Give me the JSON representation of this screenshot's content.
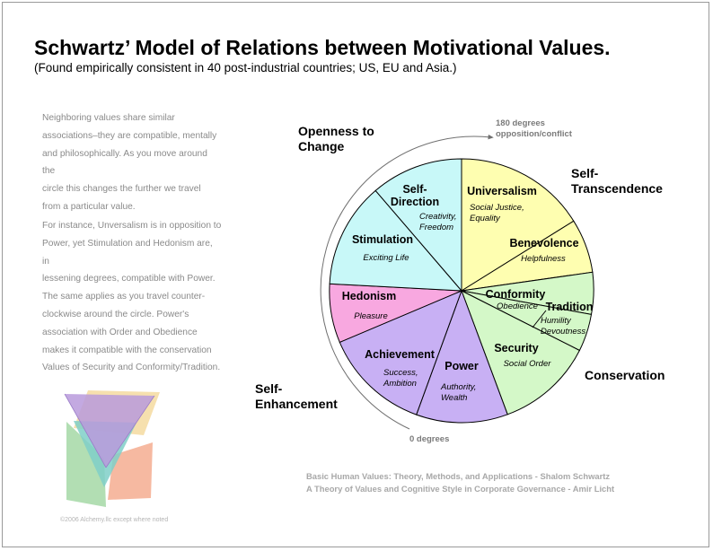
{
  "title": "Schwartz’ Model of Relations between Motivational Values.",
  "subtitle": "(Found empirically consistent in 40 post-industrial countries; US, EU and Asia.)",
  "description": {
    "p1": [
      "Neighboring values share similar",
      "associations–they are compatible, mentally",
      "and philosophically. As you move around the",
      "circle this changes the further we travel",
      "from a particular value."
    ],
    "p2": [
      "For instance, Unversalism is in opposition to",
      "Power, yet Stimulation and Hedonism are, in",
      "lessening degrees, compatible with Power.",
      "The same applies as you travel counter-",
      "clockwise around the circle. Power's",
      "association with Order and Obedience",
      "makes it compatible with the conservation",
      "Values of Security and Conformity/Tradition."
    ]
  },
  "groups": {
    "openness": [
      "Openness to",
      "Change"
    ],
    "self_transcendence": [
      "Self-",
      "Transcendence"
    ],
    "conservation": "Conservation",
    "self_enhancement": [
      "Self-",
      "Enhancement"
    ]
  },
  "arc": {
    "top_label": [
      "180 degrees",
      "opposition/conflict"
    ],
    "bottom_label": "0 degrees"
  },
  "values": {
    "universalism": {
      "name": "Universalism",
      "desc": [
        "Social Justice,",
        "Equality"
      ],
      "color": "#fefeb0"
    },
    "benevolence": {
      "name": "Benevolence",
      "desc": [
        "Helpfulness"
      ],
      "color": "#fefeb0"
    },
    "conformity": {
      "name": "Conformity",
      "desc": [
        "Obedience"
      ],
      "color": "#d4f8c8"
    },
    "tradition": {
      "name": "Tradition",
      "desc": [
        "Humility",
        "Devoutness"
      ],
      "color": "#d4f8c8"
    },
    "security": {
      "name": "Security",
      "desc": [
        "Social Order"
      ],
      "color": "#d4f8c8"
    },
    "power": {
      "name": "Power",
      "desc": [
        "Authority,",
        "Wealth"
      ],
      "color": "#c8b0f4"
    },
    "achievement": {
      "name": "Achievement",
      "desc": [
        "Success,",
        "Ambition"
      ],
      "color": "#c8b0f4"
    },
    "hedonism": {
      "name": "Hedonism",
      "desc": [
        "Pleasure"
      ],
      "color": "#f8a8e0"
    },
    "stimulation": {
      "name": "Stimulation",
      "desc": [
        "Exciting Life"
      ],
      "color": "#c8f8f8"
    },
    "self_direction": {
      "name": [
        "Self-",
        "Direction"
      ],
      "desc": [
        "Creativity,",
        "Freedom"
      ],
      "color": "#c8f8f8"
    }
  },
  "references": [
    "Basic Human Values: Theory, Methods, and Applications - Shalom Schwartz",
    "A Theory of Values and Cognitive Style in Corporate Governance - Amir Licht"
  ],
  "copyright": "©2006 Alchemy.llc except where noted"
}
